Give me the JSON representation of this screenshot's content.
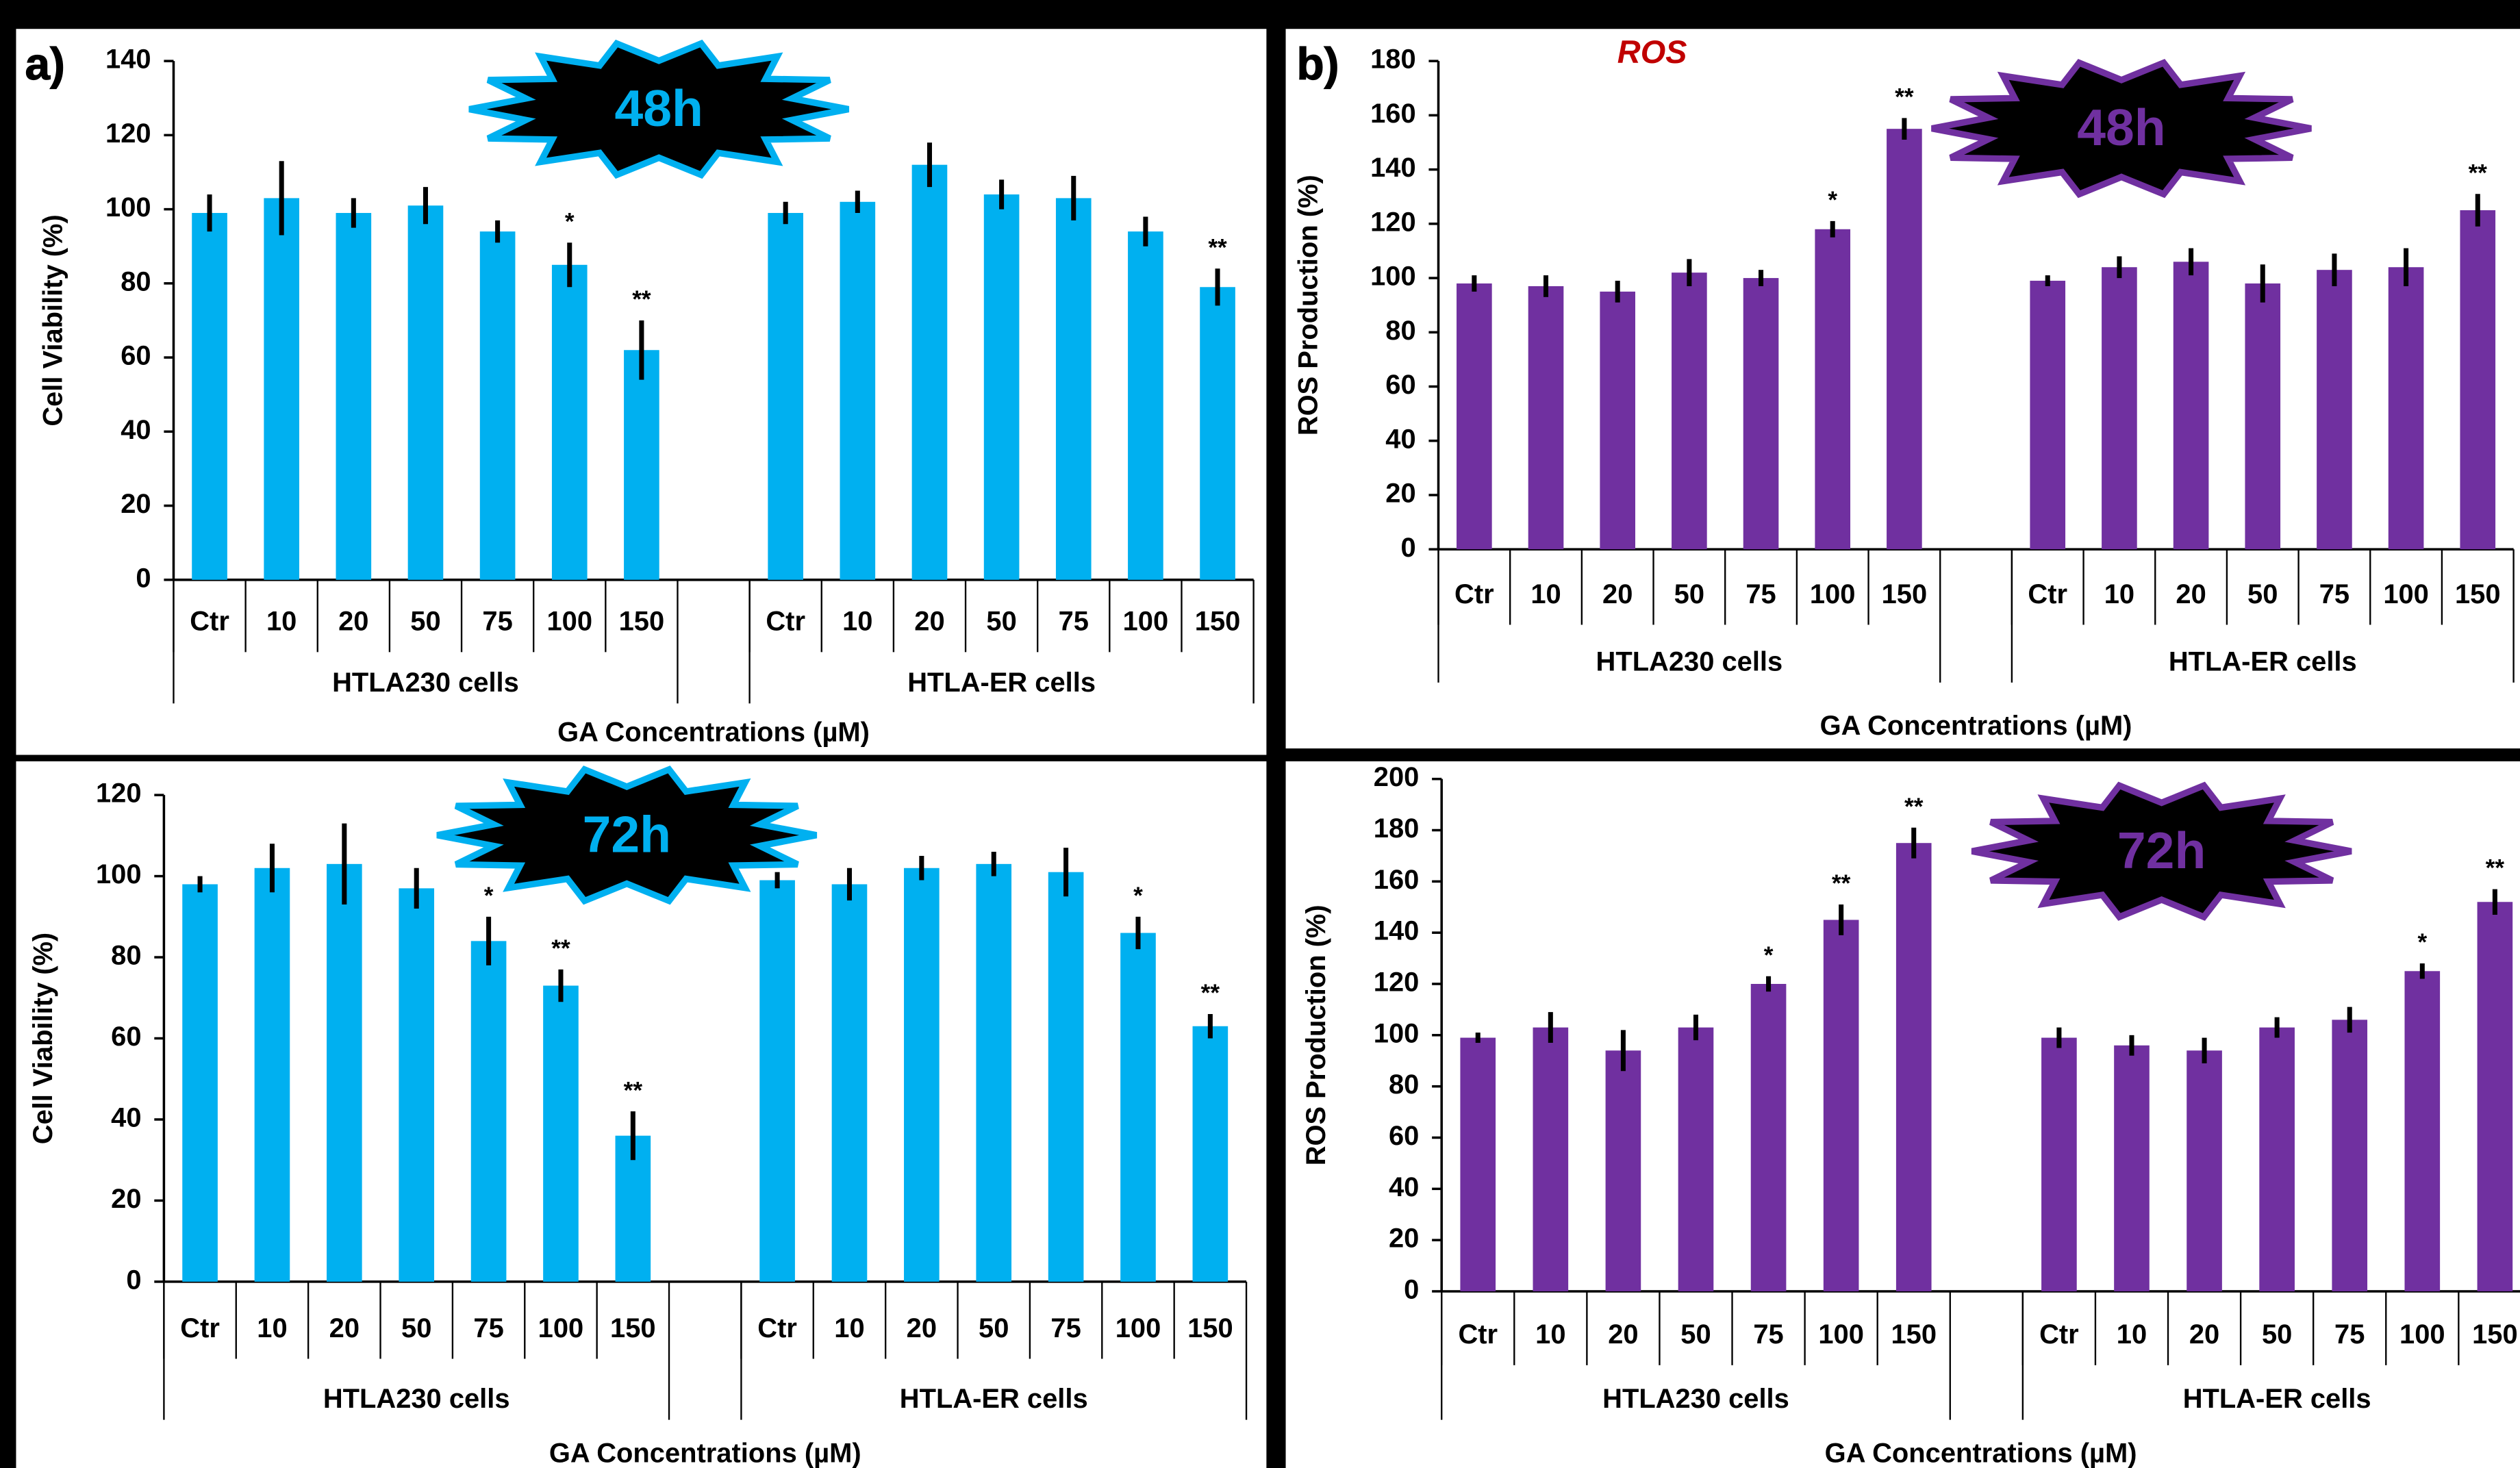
{
  "chart_data": [
    {
      "type": "bar",
      "panel_label": "a)",
      "badge": "48h",
      "ylabel": "Cell Viability (%)",
      "xlabel": "GA Concentrations (µM)",
      "color": "#00b0f0",
      "groups": [
        "HTLA230 cells",
        "HTLA-ER cells"
      ],
      "categories": [
        "Ctr",
        "10",
        "20",
        "50",
        "75",
        "100",
        "150",
        "Ctr",
        "10",
        "20",
        "50",
        "75",
        "100",
        "150"
      ],
      "values": [
        99,
        103,
        99,
        101,
        94,
        85,
        62,
        99,
        102,
        112,
        104,
        103,
        94,
        79
      ],
      "errors": [
        5,
        10,
        4,
        5,
        3,
        6,
        8,
        3,
        3,
        6,
        4,
        6,
        4,
        5
      ],
      "significance": [
        null,
        null,
        null,
        null,
        null,
        "*",
        "**",
        null,
        null,
        null,
        null,
        null,
        null,
        "**"
      ],
      "ylim": [
        0,
        140
      ],
      "yticks": [
        0,
        20,
        40,
        60,
        80,
        100,
        120,
        140
      ]
    },
    {
      "type": "bar",
      "panel_label": "b)",
      "icon_text": "ROS",
      "badge": "48h",
      "ylabel": "ROS Production (%)",
      "xlabel": "GA Concentrations (µM)",
      "color": "#7030a0",
      "groups": [
        "HTLA230 cells",
        "HTLA-ER cells"
      ],
      "categories": [
        "Ctr",
        "10",
        "20",
        "50",
        "75",
        "100",
        "150",
        "Ctr",
        "10",
        "20",
        "50",
        "75",
        "100",
        "150"
      ],
      "values": [
        98,
        97,
        95,
        102,
        100,
        118,
        155,
        99,
        104,
        106,
        98,
        103,
        104,
        125
      ],
      "errors": [
        3,
        4,
        4,
        5,
        3,
        3,
        4,
        2,
        4,
        5,
        7,
        6,
        7,
        6
      ],
      "significance": [
        null,
        null,
        null,
        null,
        null,
        "*",
        "**",
        null,
        null,
        null,
        null,
        null,
        null,
        "**"
      ],
      "ylim": [
        0,
        180
      ],
      "yticks": [
        0,
        20,
        40,
        60,
        80,
        100,
        120,
        140,
        160,
        180
      ]
    },
    {
      "type": "bar",
      "badge": "72h",
      "ylabel": "Cell Viability (%)",
      "xlabel": "GA Concentrations (µM)",
      "color": "#00b0f0",
      "groups": [
        "HTLA230 cells",
        "HTLA-ER cells"
      ],
      "categories": [
        "Ctr",
        "10",
        "20",
        "50",
        "75",
        "100",
        "150",
        "Ctr",
        "10",
        "20",
        "50",
        "75",
        "100",
        "150"
      ],
      "values": [
        98,
        102,
        103,
        97,
        84,
        73,
        36,
        99,
        98,
        102,
        103,
        101,
        86,
        63
      ],
      "errors": [
        2,
        6,
        10,
        5,
        6,
        4,
        6,
        2,
        4,
        3,
        3,
        6,
        4,
        3
      ],
      "significance": [
        null,
        null,
        null,
        null,
        "*",
        "**",
        "**",
        null,
        null,
        null,
        null,
        null,
        "*",
        "**"
      ],
      "ylim": [
        0,
        120
      ],
      "yticks": [
        0,
        20,
        40,
        60,
        80,
        100,
        120
      ]
    },
    {
      "type": "bar",
      "badge": "72h",
      "ylabel": "ROS Production (%)",
      "xlabel": "GA Concentrations (µM)",
      "color": "#7030a0",
      "groups": [
        "HTLA230 cells",
        "HTLA-ER cells"
      ],
      "categories": [
        "Ctr",
        "10",
        "20",
        "50",
        "75",
        "100",
        "150",
        "Ctr",
        "10",
        "20",
        "50",
        "75",
        "100",
        "150"
      ],
      "values": [
        99,
        103,
        94,
        103,
        120,
        145,
        175,
        99,
        96,
        94,
        103,
        106,
        125,
        152
      ],
      "errors": [
        2,
        6,
        8,
        5,
        3,
        6,
        6,
        4,
        4,
        5,
        4,
        5,
        3,
        5
      ],
      "significance": [
        null,
        null,
        null,
        null,
        "*",
        "**",
        "**",
        null,
        null,
        null,
        null,
        null,
        "*",
        "**"
      ],
      "ylim": [
        0,
        200
      ],
      "yticks": [
        0,
        20,
        40,
        60,
        80,
        100,
        120,
        140,
        160,
        180,
        200
      ]
    }
  ]
}
